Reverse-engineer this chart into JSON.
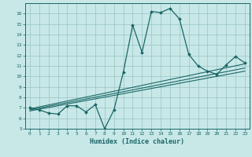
{
  "xlabel": "Humidex (Indice chaleur)",
  "bg_color": "#c8e8e8",
  "grid_color": "#a0c8c8",
  "line_color": "#1a6666",
  "xlim": [
    -0.5,
    23.5
  ],
  "ylim": [
    5,
    17
  ],
  "yticks": [
    5,
    6,
    7,
    8,
    9,
    10,
    11,
    12,
    13,
    14,
    15,
    16
  ],
  "xticks": [
    0,
    1,
    2,
    3,
    4,
    5,
    6,
    7,
    8,
    9,
    10,
    11,
    12,
    13,
    14,
    15,
    16,
    17,
    18,
    19,
    20,
    21,
    22,
    23
  ],
  "curve1_x": [
    0,
    1,
    2,
    3,
    4,
    5,
    6,
    7,
    8,
    9,
    10,
    11,
    12,
    13,
    14,
    15,
    16,
    17,
    18,
    19,
    20,
    21,
    22,
    23
  ],
  "curve1_y": [
    7.0,
    6.8,
    6.5,
    6.4,
    7.2,
    7.2,
    6.6,
    7.3,
    5.0,
    6.8,
    10.4,
    14.9,
    12.3,
    16.2,
    16.1,
    16.5,
    15.5,
    12.1,
    11.0,
    10.5,
    10.2,
    11.1,
    11.9,
    11.3
  ],
  "line1_x": [
    0,
    23
  ],
  "line1_y": [
    6.7,
    10.5
  ],
  "line2_x": [
    0,
    23
  ],
  "line2_y": [
    6.9,
    11.2
  ],
  "line3_x": [
    0,
    23
  ],
  "line3_y": [
    6.8,
    10.8
  ]
}
